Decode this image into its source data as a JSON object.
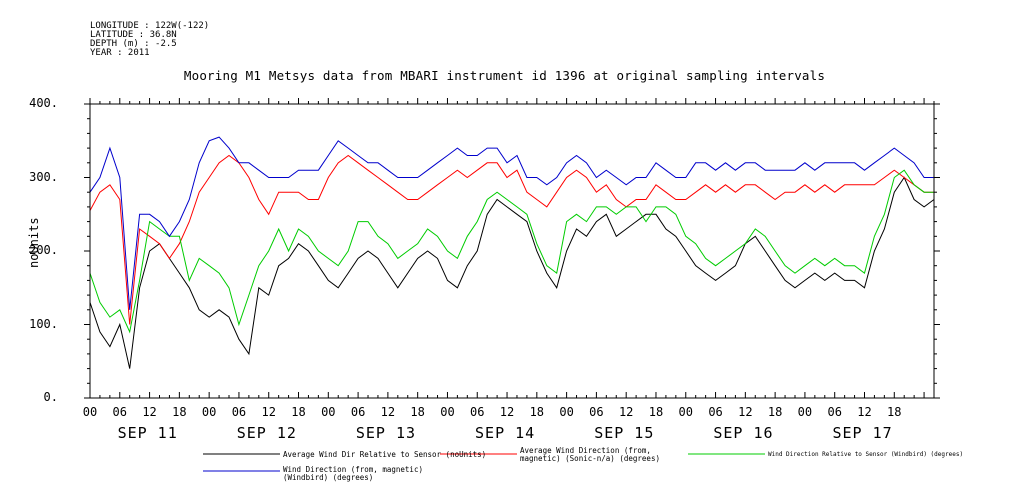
{
  "meta": {
    "longitude": "LONGITUDE : 122W(-122)",
    "latitude": "LATITUDE : 36.8N",
    "depth": "DEPTH (m) : -2.5",
    "year": "YEAR : 2011"
  },
  "chart_data": {
    "type": "line",
    "title": "Mooring M1 Metsys data from MBARI instrument id 1396 at original sampling intervals",
    "ylabel": "noUnits",
    "xlabel": "",
    "ylim": [
      0,
      400
    ],
    "yticks": [
      "0.",
      "100.",
      "200.",
      "300.",
      "400."
    ],
    "xlim_hours": [
      0,
      170
    ],
    "hour_ticks": [
      "00",
      "06",
      "12",
      "18",
      "00",
      "06",
      "12",
      "18",
      "00",
      "06",
      "12",
      "18",
      "00",
      "06",
      "12",
      "18",
      "00",
      "06",
      "12",
      "18",
      "00",
      "06",
      "12",
      "18",
      "00",
      "06",
      "12",
      "18"
    ],
    "day_labels": [
      "SEP 11",
      "SEP 12",
      "SEP 13",
      "SEP 14",
      "SEP 15",
      "SEP 16",
      "SEP 17"
    ],
    "grid": false,
    "series": [
      {
        "name": "Average Wind Dir Relative to Sensor (noUnits)",
        "color": "#000000",
        "x": [
          0,
          2,
          4,
          6,
          8,
          10,
          12,
          14,
          16,
          18,
          20,
          22,
          24,
          26,
          28,
          30,
          32,
          34,
          36,
          38,
          40,
          42,
          44,
          46,
          48,
          50,
          52,
          54,
          56,
          58,
          60,
          62,
          64,
          66,
          68,
          70,
          72,
          74,
          76,
          78,
          80,
          82,
          84,
          86,
          88,
          90,
          92,
          94,
          96,
          98,
          100,
          102,
          104,
          106,
          108,
          110,
          112,
          114,
          116,
          118,
          120,
          122,
          124,
          126,
          128,
          130,
          132,
          134,
          136,
          138,
          140,
          142,
          144,
          146,
          148,
          150,
          152,
          154,
          156,
          158,
          160,
          162,
          164,
          166,
          168,
          170
        ],
        "values": [
          130,
          90,
          70,
          100,
          40,
          150,
          200,
          210,
          190,
          170,
          150,
          120,
          110,
          120,
          110,
          80,
          60,
          150,
          140,
          180,
          190,
          210,
          200,
          180,
          160,
          150,
          170,
          190,
          200,
          190,
          170,
          150,
          170,
          190,
          200,
          190,
          160,
          150,
          180,
          200,
          250,
          270,
          260,
          250,
          240,
          200,
          170,
          150,
          200,
          230,
          220,
          240,
          250,
          220,
          230,
          240,
          250,
          250,
          230,
          220,
          200,
          180,
          170,
          160,
          170,
          180,
          210,
          220,
          200,
          180,
          160,
          150,
          160,
          170,
          160,
          170,
          160,
          160,
          150,
          200,
          230,
          280,
          300,
          270,
          260,
          270
        ]
      },
      {
        "name": "Average Wind Direction (from, magnetic) (Sonic-n/a) (degrees)",
        "color": "#ff0000",
        "x": [
          0,
          2,
          4,
          6,
          8,
          10,
          12,
          14,
          16,
          18,
          20,
          22,
          24,
          26,
          28,
          30,
          32,
          34,
          36,
          38,
          40,
          42,
          44,
          46,
          48,
          50,
          52,
          54,
          56,
          58,
          60,
          62,
          64,
          66,
          68,
          70,
          72,
          74,
          76,
          78,
          80,
          82,
          84,
          86,
          88,
          90,
          92,
          94,
          96,
          98,
          100,
          102,
          104,
          106,
          108,
          110,
          112,
          114,
          116,
          118,
          120,
          122,
          124,
          126,
          128,
          130,
          132,
          134,
          136,
          138,
          140,
          142,
          144,
          146,
          148,
          150,
          152,
          154,
          156,
          158,
          160,
          162,
          164,
          166,
          168,
          170
        ],
        "values": [
          255,
          280,
          290,
          270,
          100,
          230,
          220,
          210,
          190,
          210,
          240,
          280,
          300,
          320,
          330,
          320,
          300,
          270,
          250,
          280,
          280,
          280,
          270,
          270,
          300,
          320,
          330,
          320,
          310,
          300,
          290,
          280,
          270,
          270,
          280,
          290,
          300,
          310,
          300,
          310,
          320,
          320,
          300,
          310,
          280,
          270,
          260,
          280,
          300,
          310,
          300,
          280,
          290,
          270,
          260,
          270,
          270,
          290,
          280,
          270,
          270,
          280,
          290,
          280,
          290,
          280,
          290,
          290,
          280,
          270,
          280,
          280,
          290,
          280,
          290,
          280,
          290,
          290,
          290,
          290,
          300,
          310,
          300,
          290,
          280,
          280
        ]
      },
      {
        "name": "Wind Direction Relative to Sensor (Windbird) (degrees)",
        "color": "#00cc00",
        "x": [
          0,
          2,
          4,
          6,
          8,
          10,
          12,
          14,
          16,
          18,
          20,
          22,
          24,
          26,
          28,
          30,
          32,
          34,
          36,
          38,
          40,
          42,
          44,
          46,
          48,
          50,
          52,
          54,
          56,
          58,
          60,
          62,
          64,
          66,
          68,
          70,
          72,
          74,
          76,
          78,
          80,
          82,
          84,
          86,
          88,
          90,
          92,
          94,
          96,
          98,
          100,
          102,
          104,
          106,
          108,
          110,
          112,
          114,
          116,
          118,
          120,
          122,
          124,
          126,
          128,
          130,
          132,
          134,
          136,
          138,
          140,
          142,
          144,
          146,
          148,
          150,
          152,
          154,
          156,
          158,
          160,
          162,
          164,
          166,
          168,
          170
        ],
        "values": [
          170,
          130,
          110,
          120,
          90,
          160,
          240,
          230,
          220,
          220,
          160,
          190,
          180,
          170,
          150,
          100,
          140,
          180,
          200,
          230,
          200,
          230,
          220,
          200,
          190,
          180,
          200,
          240,
          240,
          220,
          210,
          190,
          200,
          210,
          230,
          220,
          200,
          190,
          220,
          240,
          270,
          280,
          270,
          260,
          250,
          210,
          180,
          170,
          240,
          250,
          240,
          260,
          260,
          250,
          260,
          260,
          240,
          260,
          260,
          250,
          220,
          210,
          190,
          180,
          190,
          200,
          210,
          230,
          220,
          200,
          180,
          170,
          180,
          190,
          180,
          190,
          180,
          180,
          170,
          220,
          250,
          300,
          310,
          290,
          280,
          280
        ]
      },
      {
        "name": "Wind Direction (from, magnetic) (Windbird) (degrees)",
        "color": "#0000cc",
        "x": [
          0,
          2,
          4,
          6,
          8,
          10,
          12,
          14,
          16,
          18,
          20,
          22,
          24,
          26,
          28,
          30,
          32,
          34,
          36,
          38,
          40,
          42,
          44,
          46,
          48,
          50,
          52,
          54,
          56,
          58,
          60,
          62,
          64,
          66,
          68,
          70,
          72,
          74,
          76,
          78,
          80,
          82,
          84,
          86,
          88,
          90,
          92,
          94,
          96,
          98,
          100,
          102,
          104,
          106,
          108,
          110,
          112,
          114,
          116,
          118,
          120,
          122,
          124,
          126,
          128,
          130,
          132,
          134,
          136,
          138,
          140,
          142,
          144,
          146,
          148,
          150,
          152,
          154,
          156,
          158,
          160,
          162,
          164,
          166,
          168,
          170
        ],
        "values": [
          280,
          300,
          340,
          300,
          120,
          250,
          250,
          240,
          220,
          240,
          270,
          320,
          350,
          355,
          340,
          320,
          320,
          310,
          300,
          300,
          300,
          310,
          310,
          310,
          330,
          350,
          340,
          330,
          320,
          320,
          310,
          300,
          300,
          300,
          310,
          320,
          330,
          340,
          330,
          330,
          340,
          340,
          320,
          330,
          300,
          300,
          290,
          300,
          320,
          330,
          320,
          300,
          310,
          300,
          290,
          300,
          300,
          320,
          310,
          300,
          300,
          320,
          320,
          310,
          320,
          310,
          320,
          320,
          310,
          310,
          310,
          310,
          320,
          310,
          320,
          320,
          320,
          320,
          310,
          320,
          330,
          340,
          330,
          320,
          300,
          300
        ]
      }
    ]
  }
}
